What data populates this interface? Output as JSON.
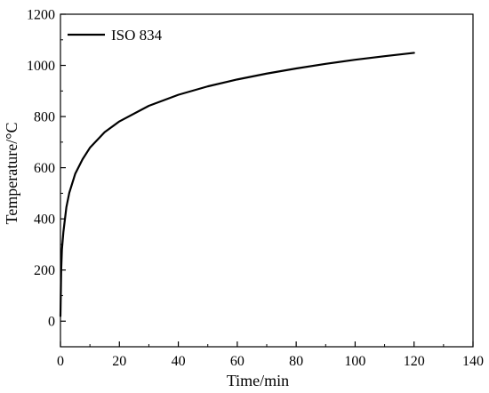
{
  "chart_data": {
    "type": "line",
    "title": "",
    "xlabel": "Time/min",
    "ylabel": "Temperature/°C",
    "xlim": [
      0,
      140
    ],
    "ylim": [
      -100,
      1200
    ],
    "xticks": [
      0,
      20,
      40,
      60,
      80,
      100,
      120,
      140
    ],
    "yticks": [
      0,
      200,
      400,
      600,
      800,
      1000,
      1200
    ],
    "grid": false,
    "legend_position": "top-left",
    "series": [
      {
        "name": "ISO 834",
        "color": "#000000",
        "x": [
          0,
          0.25,
          0.5,
          1,
          2,
          3,
          5,
          7.5,
          10,
          15,
          20,
          30,
          40,
          50,
          60,
          70,
          80,
          90,
          100,
          110,
          120
        ],
        "y": [
          20,
          201,
          281,
          349,
          445,
          502,
          576,
          633,
          678,
          739,
          781,
          842,
          885,
          918,
          945,
          968,
          988,
          1006,
          1022,
          1036,
          1049
        ]
      }
    ]
  }
}
